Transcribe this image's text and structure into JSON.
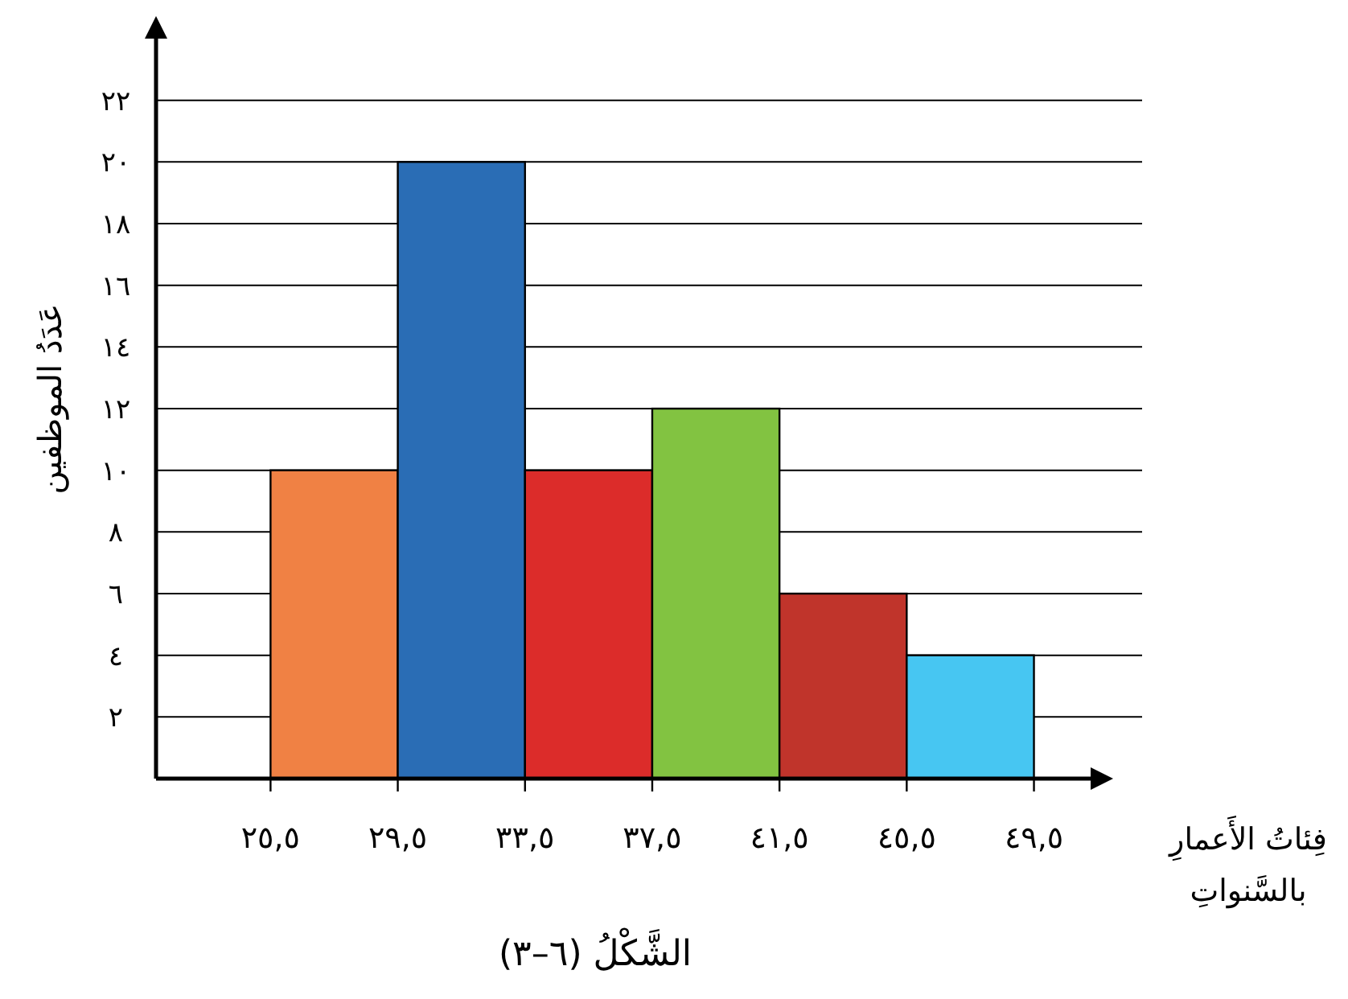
{
  "chart_data": {
    "type": "histogram",
    "ylabel": "عَدَدُ الموظفين",
    "xlabel": "فِئاتُ الأَعمارِ بالسَّنواتِ",
    "bins": [
      25.5,
      29.5,
      33.5,
      37.5,
      41.5,
      45.5,
      49.5
    ],
    "values": [
      10,
      20,
      10,
      12,
      6,
      4
    ],
    "colors": [
      "#f08144",
      "#2a6db5",
      "#dc2c2a",
      "#82c341",
      "#c0342b",
      "#47c6f2"
    ],
    "xlim": [
      21.9,
      52.9
    ],
    "ylim": [
      0,
      24
    ],
    "xticks": [
      {
        "value": 25.5,
        "label": "٢٥,٥"
      },
      {
        "value": 29.5,
        "label": "٢٩,٥"
      },
      {
        "value": 33.5,
        "label": "٣٣,٥"
      },
      {
        "value": 37.5,
        "label": "٣٧,٥"
      },
      {
        "value": 41.5,
        "label": "٤١,٥"
      },
      {
        "value": 45.5,
        "label": "٤٥,٥"
      },
      {
        "value": 49.5,
        "label": "٤٩,٥"
      }
    ],
    "yticks": [
      {
        "value": 2,
        "label": "٢"
      },
      {
        "value": 4,
        "label": "٤"
      },
      {
        "value": 6,
        "label": "٦"
      },
      {
        "value": 8,
        "label": "٨"
      },
      {
        "value": 10,
        "label": "١٠"
      },
      {
        "value": 12,
        "label": "١٢"
      },
      {
        "value": 14,
        "label": "١٤"
      },
      {
        "value": 16,
        "label": "١٦"
      },
      {
        "value": 18,
        "label": "١٨"
      },
      {
        "value": 20,
        "label": "٢٠"
      },
      {
        "value": 22,
        "label": "٢٢"
      }
    ],
    "grid": "y",
    "annotations": [
      "الشَّكْلُ (٦–٣)"
    ]
  }
}
